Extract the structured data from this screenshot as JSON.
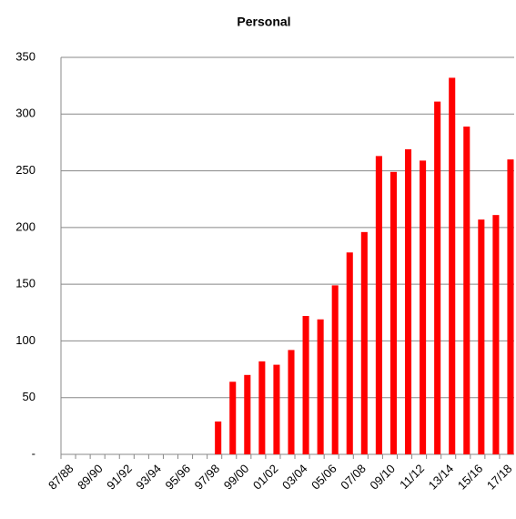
{
  "chart_data": {
    "type": "bar",
    "title": "Personal",
    "categories": [
      "87/88",
      null,
      "89/90",
      null,
      "91/92",
      null,
      "93/94",
      null,
      "95/96",
      null,
      "97/98",
      null,
      "99/00",
      null,
      "01/02",
      null,
      "03/04",
      null,
      "05/06",
      null,
      "07/08",
      null,
      "09/10",
      null,
      "11/12",
      null,
      "13/14",
      null,
      "15/16",
      null,
      "17/18"
    ],
    "values": [
      0,
      0,
      0,
      0,
      0,
      0,
      0,
      0,
      0,
      0,
      29,
      64,
      70,
      82,
      79,
      92,
      122,
      119,
      149,
      178,
      196,
      263,
      249,
      269,
      259,
      311,
      332,
      289,
      207,
      211,
      260
    ],
    "color": "#ff0000",
    "ylim": [
      0,
      350
    ],
    "yticks": [
      {
        "value": 0,
        "label": "-"
      },
      50,
      100,
      150,
      200,
      250,
      300,
      350
    ],
    "grid": true
  }
}
